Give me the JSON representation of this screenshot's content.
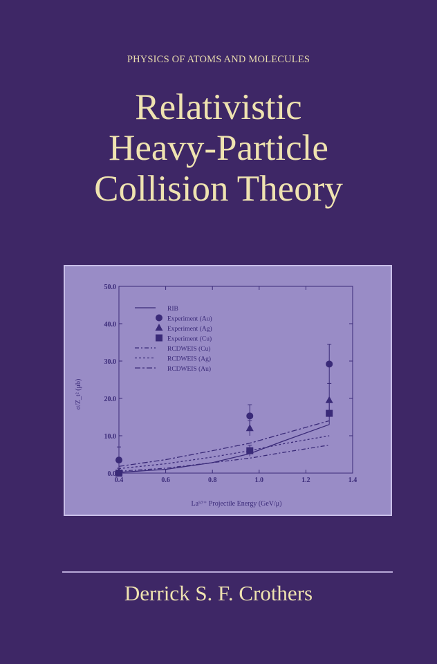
{
  "cover": {
    "series": "PHYSICS OF ATOMS AND MOLECULES",
    "title_lines": [
      "Relativistic",
      "Heavy-Particle",
      "Collision Theory"
    ],
    "author": "Derrick S. F. Crothers",
    "colors": {
      "background": "#3e2766",
      "title": "#efe3b0",
      "chart_background": "#998cc6",
      "chart_ink": "#3a2a78"
    }
  },
  "chart_data": {
    "type": "line",
    "xlabel": "La⁵⁷⁺ Projectile Energy (GeV/μ)",
    "ylabel": "σ/Z_t² (μb)",
    "xlim": [
      0.4,
      1.4
    ],
    "ylim": [
      0,
      50
    ],
    "xticks": [
      "0.4",
      "0.6",
      "0.8",
      "1.0",
      "1.2",
      "1.4"
    ],
    "yticks": [
      "0.0",
      "10.0",
      "20.0",
      "30.0",
      "40.0",
      "50.0"
    ],
    "legend_position": "top-left",
    "series": [
      {
        "name": "RIB",
        "style": "solid",
        "x": [
          0.4,
          0.6,
          0.8,
          0.96,
          1.1,
          1.3
        ],
        "y": [
          0.2,
          1.0,
          2.8,
          5.2,
          8.5,
          13.0
        ]
      },
      {
        "name": "Experiment (Au)",
        "style": "circle",
        "x": [
          0.4,
          0.96,
          1.3
        ],
        "y": [
          3.5,
          15.3,
          29.2
        ],
        "err": [
          3.5,
          3.0,
          5.3
        ]
      },
      {
        "name": "Experiment (Ag)",
        "style": "triangle",
        "x": [
          0.4,
          0.96,
          1.3
        ],
        "y": [
          0.3,
          12.0,
          19.5
        ],
        "err": [
          1.0,
          2.0,
          4.5
        ]
      },
      {
        "name": "Experiment (Cu)",
        "style": "square",
        "x": [
          0.4,
          0.96,
          1.3
        ],
        "y": [
          0.0,
          6.0,
          16.0
        ],
        "err": [
          0.5,
          1.5,
          3.0
        ]
      },
      {
        "name": "RCDWEIS (Cu)",
        "style": "dashdot",
        "x": [
          0.4,
          0.6,
          0.8,
          0.96,
          1.1,
          1.3
        ],
        "y": [
          0.5,
          1.3,
          2.8,
          4.0,
          5.5,
          7.5
        ]
      },
      {
        "name": "RCDWEIS (Ag)",
        "style": "dotted",
        "x": [
          0.4,
          0.6,
          0.8,
          0.96,
          1.1,
          1.3
        ],
        "y": [
          1.2,
          2.5,
          4.3,
          6.0,
          7.8,
          10.0
        ]
      },
      {
        "name": "RCDWEIS (Au)",
        "style": "longdash",
        "x": [
          0.4,
          0.6,
          0.8,
          0.96,
          1.1,
          1.3
        ],
        "y": [
          1.8,
          3.6,
          6.0,
          8.0,
          10.5,
          14.0
        ]
      }
    ]
  }
}
